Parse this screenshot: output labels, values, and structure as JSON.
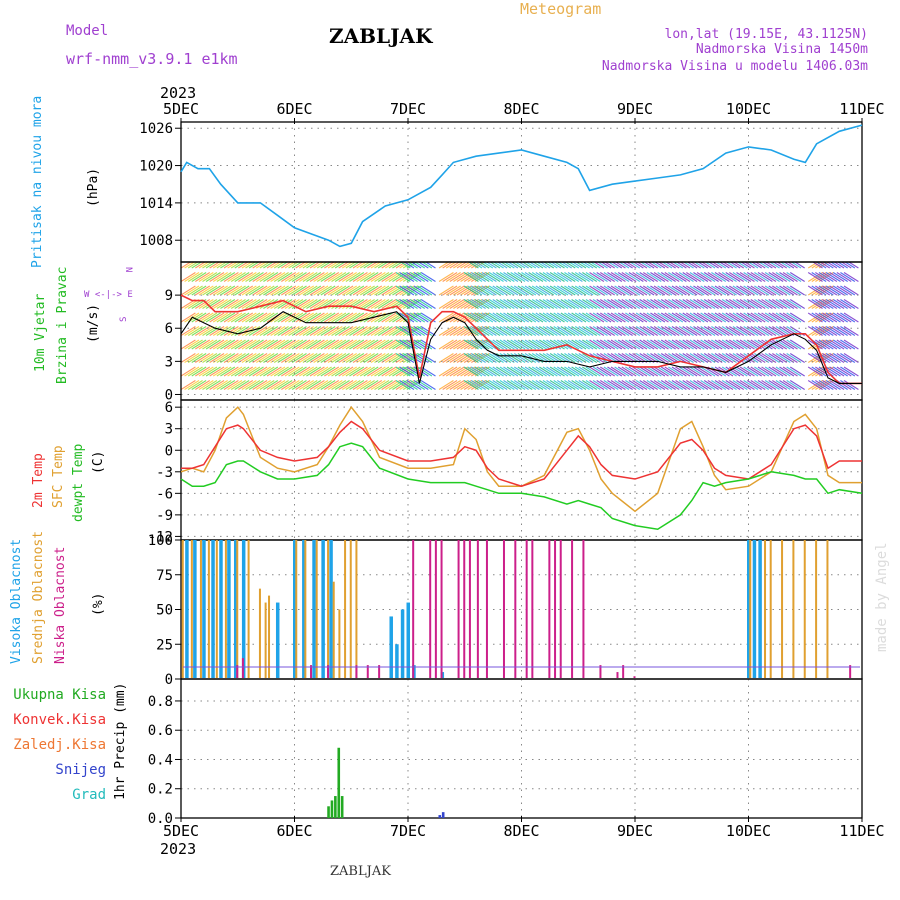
{
  "header": {
    "model_label": "Model",
    "model_name": "wrf-nmm_v3.9.1 e1km",
    "station": "ZABLJAK",
    "meteogram_label": "Meteogram",
    "lonlat": "lon,lat (19.15E, 43.1125N)",
    "altitude": "Nadmorska Visina 1450m",
    "model_altitude": "Nadmorska Visina u modelu 1406.03m",
    "year_top": "2023",
    "year_bottom": "2023",
    "footer_station": "ZABLJAK",
    "watermark": "made by Angel"
  },
  "colors": {
    "pressure": "#1fa3e8",
    "wind_speed": "#000000",
    "gust": "#ee3333",
    "t2m": "#ee3333",
    "sfc": "#e0a030",
    "dew": "#22cc22",
    "high_cloud": "#1fa3e8",
    "mid_cloud": "#e0a030",
    "low_cloud": "#cc1f8a",
    "total_precip": "#22aa22",
    "conv_precip": "#ee3333",
    "snow": "#3344cc",
    "purple_text": "#a040d0",
    "orange_text": "#e8b050"
  },
  "axis": {
    "days": [
      "5DEC",
      "6DEC",
      "7DEC",
      "8DEC",
      "9DEC",
      "10DEC",
      "11DEC"
    ]
  },
  "panels": {
    "pressure": {
      "labels": [
        "Pritisak na nivou mora",
        "(hPa)"
      ],
      "ticks": [
        "1026",
        "1020",
        "1014",
        "1008"
      ],
      "tick_values": [
        1026,
        1020,
        1014,
        1008
      ]
    },
    "wind": {
      "labels": [
        "10m Vjetar",
        "Brzina i Pravac",
        "(m/s)"
      ],
      "compass": [
        "N",
        "W <-|-> E",
        "S"
      ],
      "ticks": [
        "9",
        "6",
        "3",
        "0"
      ],
      "tick_values": [
        9,
        6,
        3,
        0
      ]
    },
    "temp": {
      "labels": [
        "2m Temp",
        "SFC Temp",
        "dewpt Temp",
        "(C)"
      ],
      "ticks": [
        "6",
        "3",
        "0",
        "-3",
        "-6",
        "-9",
        "-12"
      ],
      "tick_values": [
        6,
        3,
        0,
        -3,
        -6,
        -9,
        -12
      ]
    },
    "cloud": {
      "labels": [
        "Visoka Oblacnost",
        "Srednja Oblacnost",
        "Niska Oblacnost",
        "(%)"
      ],
      "ticks": [
        "100",
        "75",
        "50",
        "25",
        "0"
      ],
      "tick_values": [
        100,
        75,
        50,
        25,
        0
      ]
    },
    "precip": {
      "legend": [
        "Ukupna Kisa",
        "Konvek.Kisa",
        "Zaledj.Kisa",
        "Snijeg",
        "Grad"
      ],
      "ylabel": "1hr Precip (mm)",
      "ticks": [
        "0.8",
        "0.6",
        "0.4",
        "0.2",
        "0.0"
      ],
      "tick_values": [
        0.8,
        0.6,
        0.4,
        0.2,
        0
      ]
    }
  },
  "chart_data": [
    {
      "type": "line",
      "name": "pressure",
      "xlabel": "",
      "ylabel": "(hPa)",
      "ylim": [
        1004.5,
        1027
      ],
      "x_unit": "days since 5DEC 00",
      "x": [
        0,
        0.05,
        0.15,
        0.25,
        0.35,
        0.5,
        0.7,
        0.85,
        1.0,
        1.15,
        1.3,
        1.4,
        1.5,
        1.6,
        1.8,
        2.0,
        2.2,
        2.3,
        2.4,
        2.6,
        2.8,
        3.0,
        3.2,
        3.4,
        3.5,
        3.6,
        3.8,
        4.0,
        4.2,
        4.4,
        4.6,
        4.8,
        5.0,
        5.2,
        5.4,
        5.5,
        5.6,
        5.8,
        6.0
      ],
      "y": [
        1019,
        1020.5,
        1019.5,
        1019.5,
        1017,
        1014,
        1014,
        1012,
        1010,
        1009,
        1008,
        1007,
        1007.5,
        1011,
        1013.5,
        1014.5,
        1016.5,
        1018.5,
        1020.5,
        1021.5,
        1022,
        1022.5,
        1021.5,
        1020.5,
        1019.5,
        1016,
        1017,
        1017.5,
        1018,
        1018.5,
        1019.5,
        1022,
        1023,
        1022.5,
        1021,
        1020.5,
        1023.5,
        1025.5,
        1026.5
      ]
    },
    {
      "type": "line",
      "name": "wind",
      "ylabel": "(m/s)",
      "ylim": [
        -0.5,
        12
      ],
      "x": [
        0,
        0.1,
        0.2,
        0.3,
        0.5,
        0.7,
        0.9,
        1.1,
        1.3,
        1.5,
        1.7,
        1.9,
        2.0,
        2.1,
        2.2,
        2.3,
        2.4,
        2.5,
        2.6,
        2.7,
        2.8,
        3.0,
        3.2,
        3.4,
        3.6,
        3.8,
        4.0,
        4.2,
        4.4,
        4.6,
        4.8,
        5.0,
        5.2,
        5.4,
        5.5,
        5.6,
        5.7,
        5.8,
        6.0
      ],
      "series": [
        {
          "name": "speed",
          "values": [
            5.5,
            7.0,
            6.5,
            6.0,
            5.5,
            6.0,
            7.5,
            6.5,
            6.5,
            6.5,
            7.0,
            7.5,
            6.5,
            1.0,
            5.0,
            6.5,
            7.0,
            6.5,
            5.0,
            4.0,
            3.5,
            3.5,
            3.0,
            3.0,
            2.5,
            3.0,
            3.0,
            3.0,
            2.5,
            2.5,
            2.0,
            3.0,
            4.5,
            5.5,
            5.0,
            4.0,
            1.5,
            1.0,
            1.0
          ]
        },
        {
          "name": "gust",
          "values": [
            9.0,
            8.5,
            8.5,
            7.5,
            7.5,
            8.0,
            8.5,
            7.5,
            8.0,
            8.0,
            7.5,
            8.0,
            7.0,
            1.5,
            6.5,
            7.5,
            7.5,
            7.0,
            6.0,
            5.0,
            4.0,
            4.0,
            4.0,
            4.5,
            3.5,
            3.0,
            2.5,
            2.5,
            3.0,
            2.5,
            2.0,
            3.5,
            5.0,
            5.5,
            5.5,
            4.5,
            2.0,
            1.0,
            1.0
          ]
        }
      ]
    },
    {
      "type": "line",
      "name": "temperature",
      "ylabel": "(C)",
      "ylim": [
        -12.5,
        7
      ],
      "x": [
        0,
        0.1,
        0.2,
        0.3,
        0.4,
        0.5,
        0.55,
        0.7,
        0.85,
        1.0,
        1.2,
        1.3,
        1.4,
        1.5,
        1.6,
        1.75,
        2.0,
        2.2,
        2.4,
        2.5,
        2.6,
        2.7,
        2.8,
        3.0,
        3.2,
        3.4,
        3.5,
        3.6,
        3.7,
        3.8,
        4.0,
        4.2,
        4.4,
        4.5,
        4.6,
        4.7,
        4.8,
        5.0,
        5.2,
        5.4,
        5.5,
        5.6,
        5.7,
        5.8,
        6.0
      ],
      "series": [
        {
          "name": "t2m",
          "values": [
            -2.5,
            -2.5,
            -2.0,
            0.5,
            3.0,
            3.5,
            3.0,
            0.0,
            -1.0,
            -1.5,
            -1.0,
            0.5,
            2.5,
            4.0,
            3.0,
            0.0,
            -1.5,
            -1.5,
            -1.0,
            0.5,
            0.0,
            -2.5,
            -4.0,
            -5.0,
            -4.0,
            0.0,
            2.0,
            0.5,
            -2.0,
            -3.5,
            -4.0,
            -3.0,
            1.0,
            1.5,
            0.0,
            -2.5,
            -3.5,
            -4.0,
            -2.0,
            3.0,
            3.5,
            2.0,
            -2.5,
            -1.5,
            -1.5
          ]
        },
        {
          "name": "sfc",
          "values": [
            -3.0,
            -2.5,
            -3.0,
            0.0,
            4.5,
            6.0,
            5.0,
            -1.0,
            -2.5,
            -3.0,
            -2.0,
            0.5,
            3.5,
            6.0,
            4.0,
            -1.0,
            -2.5,
            -2.5,
            -2.0,
            3.0,
            1.5,
            -3.0,
            -5.0,
            -5.0,
            -3.5,
            2.5,
            3.0,
            0.0,
            -4.0,
            -6.0,
            -8.5,
            -6.0,
            3.0,
            4.0,
            0.5,
            -3.5,
            -5.5,
            -5.0,
            -3.0,
            4.0,
            5.0,
            3.0,
            -3.5,
            -4.5,
            -4.5
          ]
        },
        {
          "name": "dewpt",
          "values": [
            -4.0,
            -5.0,
            -5.0,
            -4.5,
            -2.0,
            -1.5,
            -1.5,
            -3.0,
            -4.0,
            -4.0,
            -3.5,
            -2.0,
            0.5,
            1.0,
            0.5,
            -2.5,
            -4.0,
            -4.5,
            -4.5,
            -4.5,
            -5.0,
            -5.5,
            -6.0,
            -6.0,
            -6.5,
            -7.5,
            -7.0,
            -7.5,
            -8.0,
            -9.5,
            -10.5,
            -11.0,
            -9.0,
            -7.0,
            -4.5,
            -5.0,
            -4.5,
            -4.0,
            -3.0,
            -3.5,
            -4.0,
            -4.0,
            -6.0,
            -5.5,
            -6.0
          ]
        }
      ]
    },
    {
      "type": "bar",
      "name": "cloud_cover",
      "ylabel": "(%)",
      "ylim": [
        0,
        100
      ],
      "series": [
        {
          "name": "Visoka Oblacnost",
          "bars": [
            [
              0.05,
              100
            ],
            [
              0.12,
              100
            ],
            [
              0.2,
              100
            ],
            [
              0.28,
              100
            ],
            [
              0.35,
              100
            ],
            [
              0.42,
              100
            ],
            [
              0.48,
              100
            ],
            [
              0.55,
              100
            ],
            [
              1.0,
              100
            ],
            [
              1.08,
              100
            ],
            [
              1.17,
              100
            ],
            [
              1.25,
              100
            ],
            [
              1.32,
              100
            ],
            [
              0.85,
              55
            ],
            [
              1.85,
              45
            ],
            [
              1.9,
              25
            ],
            [
              1.95,
              50
            ],
            [
              2.0,
              55
            ],
            [
              2.05,
              10
            ],
            [
              2.3,
              5
            ],
            [
              5.0,
              100
            ],
            [
              5.05,
              100
            ],
            [
              5.1,
              100
            ]
          ]
        },
        {
          "name": "Srednja Oblacnost",
          "bars": [
            [
              0.02,
              100
            ],
            [
              0.1,
              100
            ],
            [
              0.18,
              100
            ],
            [
              0.25,
              100
            ],
            [
              0.32,
              100
            ],
            [
              0.4,
              100
            ],
            [
              0.5,
              100
            ],
            [
              0.6,
              100
            ],
            [
              0.7,
              65
            ],
            [
              0.75,
              55
            ],
            [
              0.78,
              60
            ],
            [
              1.02,
              100
            ],
            [
              1.1,
              100
            ],
            [
              1.2,
              100
            ],
            [
              1.3,
              100
            ],
            [
              1.35,
              70
            ],
            [
              1.4,
              50
            ],
            [
              1.45,
              100
            ],
            [
              1.5,
              100
            ],
            [
              1.55,
              100
            ],
            [
              5.02,
              100
            ],
            [
              5.15,
              100
            ],
            [
              5.2,
              100
            ],
            [
              5.3,
              100
            ],
            [
              5.4,
              100
            ],
            [
              5.5,
              100
            ],
            [
              5.6,
              100
            ],
            [
              5.7,
              100
            ]
          ]
        },
        {
          "name": "Niska Oblacnost",
          "bars": [
            [
              0.5,
              10
            ],
            [
              0.55,
              15
            ],
            [
              1.15,
              10
            ],
            [
              1.3,
              10
            ],
            [
              1.55,
              10
            ],
            [
              1.65,
              10
            ],
            [
              1.75,
              10
            ],
            [
              2.05,
              100
            ],
            [
              2.2,
              100
            ],
            [
              2.25,
              100
            ],
            [
              2.3,
              100
            ],
            [
              2.45,
              100
            ],
            [
              2.5,
              100
            ],
            [
              2.55,
              100
            ],
            [
              2.62,
              100
            ],
            [
              2.7,
              100
            ],
            [
              2.85,
              100
            ],
            [
              2.95,
              100
            ],
            [
              3.05,
              100
            ],
            [
              3.1,
              100
            ],
            [
              3.25,
              100
            ],
            [
              3.3,
              100
            ],
            [
              3.35,
              100
            ],
            [
              3.45,
              100
            ],
            [
              3.55,
              100
            ],
            [
              3.7,
              10
            ],
            [
              3.85,
              5
            ],
            [
              3.9,
              10
            ],
            [
              4.0,
              2
            ],
            [
              5.9,
              10
            ]
          ]
        }
      ]
    },
    {
      "type": "bar",
      "name": "precipitation",
      "ylabel": "1hr Precip (mm)",
      "ylim": [
        0,
        0.95
      ],
      "series": [
        {
          "name": "Ukupna Kisa",
          "bars": [
            [
              1.3,
              0.08
            ],
            [
              1.33,
              0.12
            ],
            [
              1.36,
              0.15
            ],
            [
              1.39,
              0.48
            ],
            [
              1.42,
              0.15
            ]
          ]
        },
        {
          "name": "Snijeg",
          "bars": [
            [
              2.28,
              0.02
            ],
            [
              2.31,
              0.04
            ]
          ]
        }
      ]
    }
  ]
}
